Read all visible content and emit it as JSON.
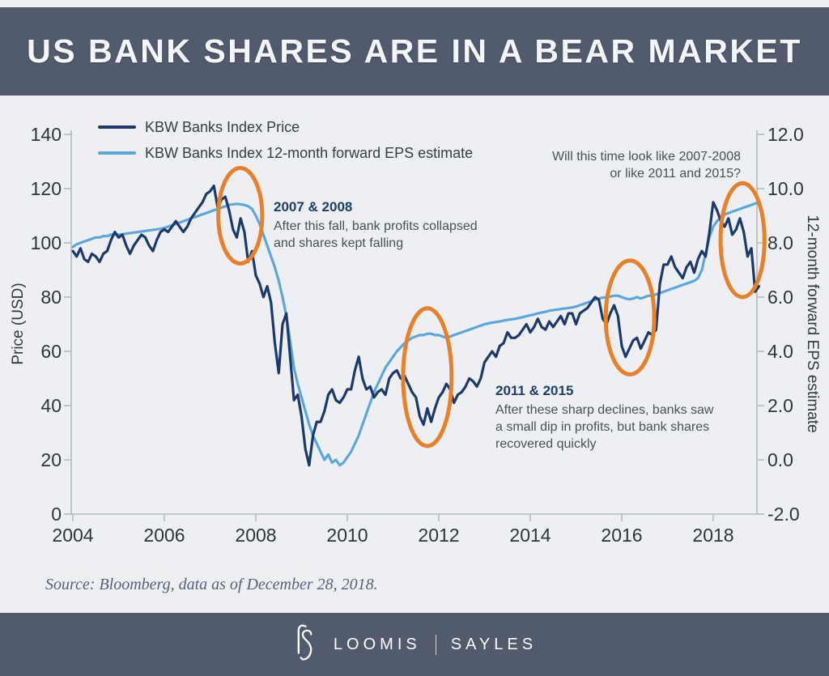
{
  "header": {
    "title": "US BANK SHARES ARE IN A BEAR MARKET"
  },
  "source_note": "Source: Bloomberg, data as of  December 28, 2018.",
  "footer": {
    "brand_left": "LOOMIS",
    "brand_right": "SAYLES"
  },
  "colors": {
    "band": "#525a6e",
    "bg": "#edeff3",
    "text": "#4b5056",
    "annotation_heading": "#1f4066"
  },
  "chart_data": {
    "type": "line",
    "title": "US BANK SHARES ARE IN A BEAR MARKET",
    "x": {
      "range": [
        2004,
        2019
      ],
      "ticks": [
        2004,
        2006,
        2008,
        2010,
        2012,
        2014,
        2016,
        2018
      ],
      "points_start_year": 2004,
      "points_per_year": 12
    },
    "y_left": {
      "label": "Price (USD)",
      "range": [
        0,
        140
      ],
      "ticks": [
        0,
        20,
        40,
        60,
        80,
        100,
        120,
        140
      ]
    },
    "y_right": {
      "label": "12-month forward EPS estimate",
      "range": [
        -2.0,
        12.0
      ],
      "ticks": [
        -2,
        0,
        2,
        4,
        6,
        8,
        10,
        12
      ]
    },
    "grid": false,
    "legend_position": "top-left",
    "highlight_color": "#e8802a",
    "series": [
      {
        "name": "KBW Banks Index Price",
        "axis": "left",
        "color": "#1b3a6b",
        "values": [
          97,
          95,
          98,
          94,
          93,
          96,
          95,
          93,
          96,
          97,
          101,
          104,
          102,
          103,
          99,
          96,
          99,
          101,
          103,
          102,
          99,
          97,
          101,
          104,
          105,
          104,
          106,
          108,
          106,
          104,
          106,
          109,
          111,
          113,
          115,
          118,
          119,
          121,
          113,
          116,
          117,
          112,
          105,
          102,
          109,
          104,
          93,
          97,
          88,
          85,
          80,
          84,
          78,
          63,
          52,
          70,
          74,
          58,
          42,
          44,
          36,
          24,
          18,
          29,
          34,
          34,
          38,
          44,
          46,
          42,
          41,
          43,
          46,
          46,
          53,
          58,
          50,
          46,
          47,
          43,
          45,
          46,
          44,
          50,
          52,
          53,
          50,
          51,
          48,
          45,
          43,
          36,
          33,
          39,
          34,
          39,
          43,
          45,
          48,
          46,
          41,
          44,
          45,
          47,
          50,
          49,
          47,
          50,
          56,
          58,
          60,
          58,
          62,
          63,
          67,
          65,
          65,
          66,
          68,
          70,
          67,
          69,
          72,
          69,
          68,
          71,
          69,
          71,
          73,
          70,
          74,
          74,
          70,
          74,
          75,
          76,
          78,
          80,
          79,
          72,
          70,
          74,
          77,
          73,
          62,
          58,
          61,
          64,
          65,
          61,
          64,
          67,
          66,
          68,
          85,
          92,
          92,
          95,
          91,
          89,
          87,
          91,
          93,
          89,
          94,
          97,
          95,
          104,
          115,
          112,
          108,
          106,
          109,
          103,
          105,
          109,
          104,
          95,
          98,
          82,
          84
        ]
      },
      {
        "name": "KBW Banks Index 12-month forward EPS estimate",
        "axis": "right",
        "color": "#5ba7dc",
        "values": [
          7.85,
          7.95,
          8.0,
          8.05,
          8.1,
          8.15,
          8.2,
          8.2,
          8.25,
          8.25,
          8.3,
          8.3,
          8.3,
          8.32,
          8.34,
          8.36,
          8.38,
          8.4,
          8.42,
          8.44,
          8.46,
          8.48,
          8.5,
          8.52,
          8.55,
          8.6,
          8.65,
          8.7,
          8.75,
          8.8,
          8.85,
          8.9,
          8.95,
          9.0,
          9.05,
          9.1,
          9.15,
          9.2,
          9.25,
          9.3,
          9.35,
          9.4,
          9.42,
          9.44,
          9.42,
          9.4,
          9.35,
          9.25,
          9.0,
          8.7,
          8.3,
          7.9,
          7.5,
          7.1,
          6.6,
          6.0,
          5.3,
          4.4,
          3.4,
          2.8,
          2.3,
          1.8,
          1.3,
          0.9,
          0.6,
          0.3,
          0.0,
          0.2,
          -0.1,
          0.0,
          -0.2,
          -0.1,
          0.1,
          0.3,
          0.6,
          0.9,
          1.3,
          1.7,
          2.1,
          2.5,
          2.8,
          3.1,
          3.4,
          3.6,
          3.8,
          4.0,
          4.15,
          4.3,
          4.4,
          4.5,
          4.55,
          4.6,
          4.6,
          4.65,
          4.65,
          4.6,
          4.6,
          4.55,
          4.5,
          4.55,
          4.6,
          4.65,
          4.7,
          4.75,
          4.8,
          4.85,
          4.9,
          4.95,
          5.0,
          5.03,
          5.06,
          5.08,
          5.1,
          5.13,
          5.16,
          5.18,
          5.2,
          5.23,
          5.26,
          5.3,
          5.33,
          5.36,
          5.4,
          5.43,
          5.46,
          5.5,
          5.52,
          5.54,
          5.56,
          5.58,
          5.6,
          5.62,
          5.65,
          5.7,
          5.75,
          5.8,
          5.85,
          5.9,
          5.95,
          5.98,
          6.0,
          6.02,
          6.05,
          6.05,
          6.0,
          5.95,
          5.92,
          5.95,
          6.0,
          5.95,
          6.0,
          6.05,
          6.05,
          6.1,
          6.15,
          6.2,
          6.25,
          6.3,
          6.35,
          6.4,
          6.45,
          6.5,
          6.55,
          6.6,
          6.7,
          7.0,
          7.6,
          8.2,
          8.6,
          8.8,
          8.95,
          9.05,
          9.1,
          9.15,
          9.2,
          9.25,
          9.3,
          9.35,
          9.4,
          9.45,
          9.5
        ]
      }
    ],
    "highlights": [
      {
        "label": "2007 peak and fall",
        "year": 2007.66,
        "price": 110,
        "rx_years": 0.48,
        "ry_price": 17.6
      },
      {
        "label": "2011 decline",
        "year": 2011.75,
        "price": 50.5,
        "rx_years": 0.53,
        "ry_price": 25.4
      },
      {
        "label": "2015-2016 decline",
        "year": 2016.18,
        "price": 72.5,
        "rx_years": 0.53,
        "ry_price": 21
      },
      {
        "label": "2018 decline",
        "year": 2018.64,
        "price": 101,
        "rx_years": 0.48,
        "ry_price": 21
      }
    ],
    "annotations": [
      {
        "heading": "2007 & 2008",
        "lines": [
          "After this fall, bank profits collapsed",
          "and shares kept falling"
        ]
      },
      {
        "heading": "2011 & 2015",
        "lines": [
          "After these sharp declines, banks saw",
          "a small dip in profits, but bank shares",
          "recovered quickly"
        ]
      },
      {
        "heading": "",
        "lines": [
          "Will this time look like 2007-2008",
          "or like 2011 and 2015?"
        ]
      }
    ]
  }
}
